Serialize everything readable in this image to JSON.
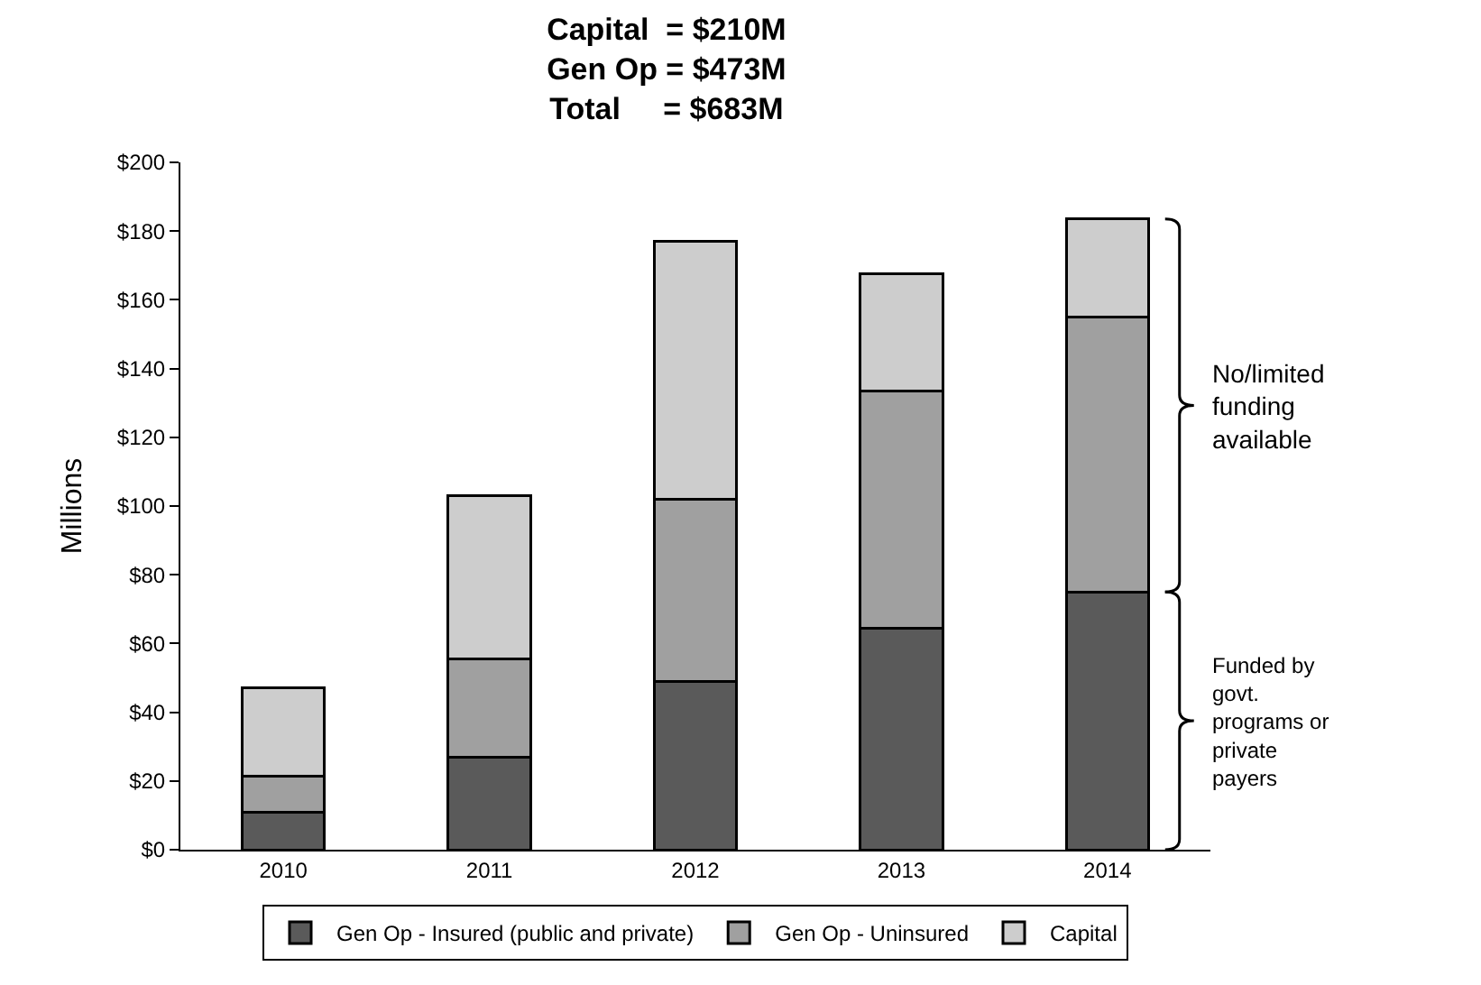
{
  "chart_data": {
    "type": "bar",
    "stacked": true,
    "title": "Capital  = $210M\nGen Op = $473M\nTotal     = $683M",
    "ylabel": "Millions",
    "categories": [
      "2010",
      "2011",
      "2012",
      "2013",
      "2014"
    ],
    "series": [
      {
        "name": "Gen Op - Insured (public and private)",
        "color": "#5a5a5a",
        "values": [
          11,
          27,
          49,
          64.5,
          75
        ]
      },
      {
        "name": "Gen Op - Uninsured",
        "color": "#a0a0a0",
        "values": [
          10.5,
          28.5,
          53,
          69,
          80
        ]
      },
      {
        "name": "Capital",
        "color": "#cdcdcd",
        "values": [
          25.5,
          47.5,
          75,
          34,
          28.5
        ]
      }
    ],
    "ylim": [
      0,
      200
    ],
    "yticks": [
      {
        "value": 0,
        "label": "$0"
      },
      {
        "value": 20,
        "label": "$20"
      },
      {
        "value": 40,
        "label": "$40"
      },
      {
        "value": 60,
        "label": "$60"
      },
      {
        "value": 80,
        "label": "$80"
      },
      {
        "value": 100,
        "label": "$100"
      },
      {
        "value": 120,
        "label": "$120"
      },
      {
        "value": 140,
        "label": "$140"
      },
      {
        "value": 160,
        "label": "$160"
      },
      {
        "value": 180,
        "label": "$180"
      },
      {
        "value": 200,
        "label": "$200"
      }
    ],
    "annotations": [
      "No/limited\nfunding\navailable",
      "Funded by\ngovt.\nprograms or\nprivate\npayers"
    ],
    "legend": "bottom"
  }
}
